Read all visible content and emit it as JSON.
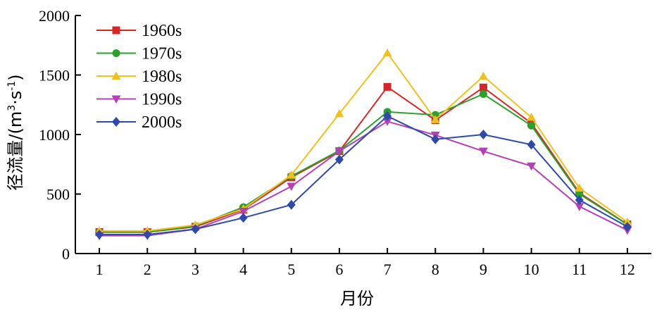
{
  "chart_data": {
    "type": "line",
    "xlabel": "月份",
    "ylabel": "径流量/(m³·s⁻¹)",
    "ylabel_parts": {
      "main": "径流量/(m",
      "sup1": "3",
      "mid": "·s",
      "sup2": "-1",
      "end": ")"
    },
    "x": [
      1,
      2,
      3,
      4,
      5,
      6,
      7,
      8,
      9,
      10,
      11,
      12
    ],
    "xlim": [
      0.5,
      12.5
    ],
    "ylim": [
      0,
      2000
    ],
    "yticks": [
      0,
      500,
      1000,
      1500,
      2000
    ],
    "grid": false,
    "legend_position": "top-left",
    "series": [
      {
        "name": "1960s",
        "color": "#d62728",
        "marker": "square",
        "values": [
          180,
          180,
          225,
          370,
          640,
          860,
          1400,
          1120,
          1395,
          1095,
          510,
          245
        ]
      },
      {
        "name": "1970s",
        "color": "#2ca02c",
        "marker": "circle",
        "values": [
          180,
          180,
          230,
          390,
          650,
          865,
          1190,
          1165,
          1340,
          1075,
          500,
          245
        ]
      },
      {
        "name": "1980s",
        "color": "#f0c020",
        "marker": "triangle-up",
        "values": [
          190,
          190,
          240,
          375,
          660,
          1175,
          1685,
          1125,
          1490,
          1145,
          550,
          265
        ]
      },
      {
        "name": "1990s",
        "color": "#b540b5",
        "marker": "triangle-down",
        "values": [
          150,
          150,
          205,
          355,
          565,
          860,
          1110,
          995,
          860,
          735,
          395,
          195
        ]
      },
      {
        "name": "2000s",
        "color": "#2e4aa8",
        "marker": "diamond",
        "values": [
          160,
          160,
          205,
          300,
          410,
          790,
          1155,
          960,
          1000,
          915,
          450,
          225
        ]
      }
    ]
  }
}
